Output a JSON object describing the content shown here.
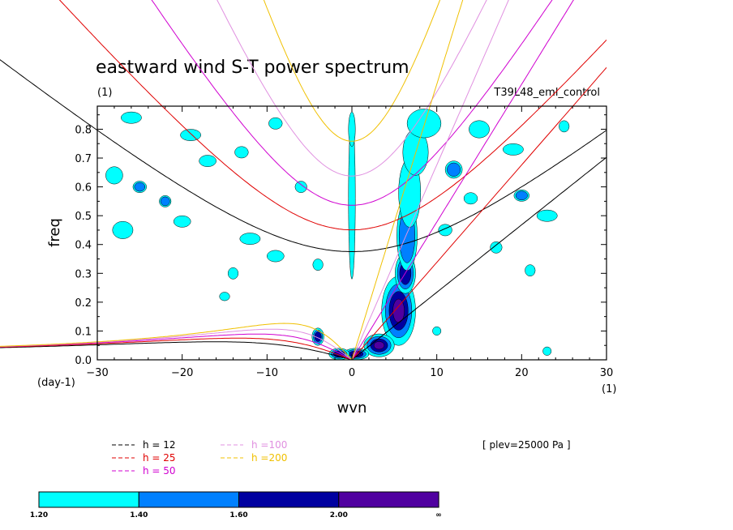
{
  "chart_data": {
    "type": "heatmap",
    "title": "eastward wind S-T power spectrum",
    "subtitle_left": "(1)",
    "subtitle_right": "T39L48_eml_control",
    "xlabel": "wvn",
    "ylabel": "freq",
    "x_units": "(1)",
    "y_units": "(day-1)",
    "xlim": [
      -30,
      30
    ],
    "ylim": [
      0.0,
      0.88
    ],
    "xticks": [
      -30,
      -20,
      -10,
      0,
      10,
      20,
      30
    ],
    "xtick_labels": [
      "−30",
      "−20",
      "−10",
      "0",
      "10",
      "20",
      "30"
    ],
    "yticks": [
      0.0,
      0.1,
      0.2,
      0.3,
      0.4,
      0.5,
      0.6,
      0.7,
      0.8
    ],
    "ytick_labels": [
      "0.0",
      "0.1",
      "0.2",
      "0.3",
      "0.4",
      "0.5",
      "0.6",
      "0.7",
      "0.8"
    ],
    "annotation": "[ plev=25000 Pa ]",
    "contour_levels": [
      1.2,
      1.4,
      1.6,
      2.0
    ],
    "colorbar": {
      "labels": [
        "1.20",
        "1.40",
        "1.60",
        "2.00",
        "∞"
      ],
      "colors": [
        "#00ffff",
        "#0080ff",
        "#0000a0",
        "#5000a0"
      ]
    },
    "dispersion_curves": [
      {
        "label": "h = 12",
        "h": 12,
        "color": "#000000"
      },
      {
        "label": "h = 25",
        "h": 25,
        "color": "#e00000"
      },
      {
        "label": "h = 50",
        "h": 50,
        "color": "#d000d0"
      },
      {
        "label": "h =100",
        "h": 100,
        "color": "#e090e0"
      },
      {
        "label": "h =200",
        "h": 200,
        "color": "#f0c000"
      }
    ],
    "power_blobs": [
      {
        "k": 5.5,
        "f": 0.17,
        "level": 4,
        "rk": 2.0,
        "rf": 0.12
      },
      {
        "k": 3.2,
        "f": 0.05,
        "level": 4,
        "rk": 1.8,
        "rf": 0.04
      },
      {
        "k": 6.3,
        "f": 0.3,
        "level": 3,
        "rk": 1.2,
        "rf": 0.07
      },
      {
        "k": 6.5,
        "f": 0.43,
        "level": 2,
        "rk": 1.2,
        "rf": 0.12
      },
      {
        "k": 6.8,
        "f": 0.58,
        "level": 1,
        "rk": 1.3,
        "rf": 0.12
      },
      {
        "k": 7.5,
        "f": 0.72,
        "level": 1,
        "rk": 1.5,
        "rf": 0.08
      },
      {
        "k": 8.5,
        "f": 0.82,
        "level": 1,
        "rk": 2.0,
        "rf": 0.05
      },
      {
        "k": 0.5,
        "f": 0.02,
        "level": 4,
        "rk": 1.5,
        "rf": 0.02
      },
      {
        "k": -4.0,
        "f": 0.08,
        "level": 3,
        "rk": 0.7,
        "rf": 0.03
      },
      {
        "k": -1.5,
        "f": 0.02,
        "level": 3,
        "rk": 1.2,
        "rf": 0.02
      },
      {
        "k": 0.0,
        "f": 0.56,
        "level": 1,
        "rk": 0.4,
        "rf": 0.28
      },
      {
        "k": 0.0,
        "f": 0.8,
        "level": 1,
        "rk": 0.4,
        "rf": 0.06
      },
      {
        "k": -26.0,
        "f": 0.84,
        "level": 1,
        "rk": 1.2,
        "rf": 0.02
      },
      {
        "k": -28.0,
        "f": 0.64,
        "level": 1,
        "rk": 1.0,
        "rf": 0.03
      },
      {
        "k": -25.0,
        "f": 0.6,
        "level": 2,
        "rk": 0.8,
        "rf": 0.02
      },
      {
        "k": -22.0,
        "f": 0.55,
        "level": 2,
        "rk": 0.7,
        "rf": 0.02
      },
      {
        "k": -17.0,
        "f": 0.69,
        "level": 1,
        "rk": 1.0,
        "rf": 0.02
      },
      {
        "k": -19.0,
        "f": 0.78,
        "level": 1,
        "rk": 1.2,
        "rf": 0.02
      },
      {
        "k": -13.0,
        "f": 0.72,
        "level": 1,
        "rk": 0.8,
        "rf": 0.02
      },
      {
        "k": -12.0,
        "f": 0.42,
        "level": 1,
        "rk": 1.2,
        "rf": 0.02
      },
      {
        "k": -9.0,
        "f": 0.36,
        "level": 1,
        "rk": 1.0,
        "rf": 0.02
      },
      {
        "k": -27.0,
        "f": 0.45,
        "level": 1,
        "rk": 1.2,
        "rf": 0.03
      },
      {
        "k": -20.0,
        "f": 0.48,
        "level": 1,
        "rk": 1.0,
        "rf": 0.02
      },
      {
        "k": -9.0,
        "f": 0.82,
        "level": 1,
        "rk": 0.8,
        "rf": 0.02
      },
      {
        "k": -6.0,
        "f": 0.6,
        "level": 1,
        "rk": 0.7,
        "rf": 0.02
      },
      {
        "k": -4.0,
        "f": 0.33,
        "level": 1,
        "rk": 0.6,
        "rf": 0.02
      },
      {
        "k": -14.0,
        "f": 0.3,
        "level": 1,
        "rk": 0.6,
        "rf": 0.02
      },
      {
        "k": 12.0,
        "f": 0.66,
        "level": 2,
        "rk": 1.0,
        "rf": 0.03
      },
      {
        "k": 15.0,
        "f": 0.8,
        "level": 1,
        "rk": 1.2,
        "rf": 0.03
      },
      {
        "k": 19.0,
        "f": 0.73,
        "level": 1,
        "rk": 1.2,
        "rf": 0.02
      },
      {
        "k": 23.0,
        "f": 0.5,
        "level": 1,
        "rk": 1.2,
        "rf": 0.02
      },
      {
        "k": 20.0,
        "f": 0.57,
        "level": 2,
        "rk": 0.9,
        "rf": 0.02
      },
      {
        "k": 14.0,
        "f": 0.56,
        "level": 1,
        "rk": 0.8,
        "rf": 0.02
      },
      {
        "k": 25.0,
        "f": 0.81,
        "level": 1,
        "rk": 0.6,
        "rf": 0.02
      },
      {
        "k": 17.0,
        "f": 0.39,
        "level": 1,
        "rk": 0.7,
        "rf": 0.02
      },
      {
        "k": 21.0,
        "f": 0.31,
        "level": 1,
        "rk": 0.6,
        "rf": 0.02
      },
      {
        "k": 11.0,
        "f": 0.45,
        "level": 1,
        "rk": 0.8,
        "rf": 0.02
      },
      {
        "k": 23.0,
        "f": 0.03,
        "level": 1,
        "rk": 0.5,
        "rf": 0.015
      },
      {
        "k": 10.0,
        "f": 0.1,
        "level": 1,
        "rk": 0.5,
        "rf": 0.015
      },
      {
        "k": -15.0,
        "f": 0.22,
        "level": 1,
        "rk": 0.6,
        "rf": 0.015
      }
    ]
  },
  "legend": {
    "items": [
      {
        "label": "h = 12",
        "color": "#000000"
      },
      {
        "label": "h = 25",
        "color": "#e00000"
      },
      {
        "label": "h = 50",
        "color": "#d000d0"
      },
      {
        "label": "h =100",
        "color": "#e090e0"
      },
      {
        "label": "h =200",
        "color": "#f0c000"
      }
    ]
  }
}
